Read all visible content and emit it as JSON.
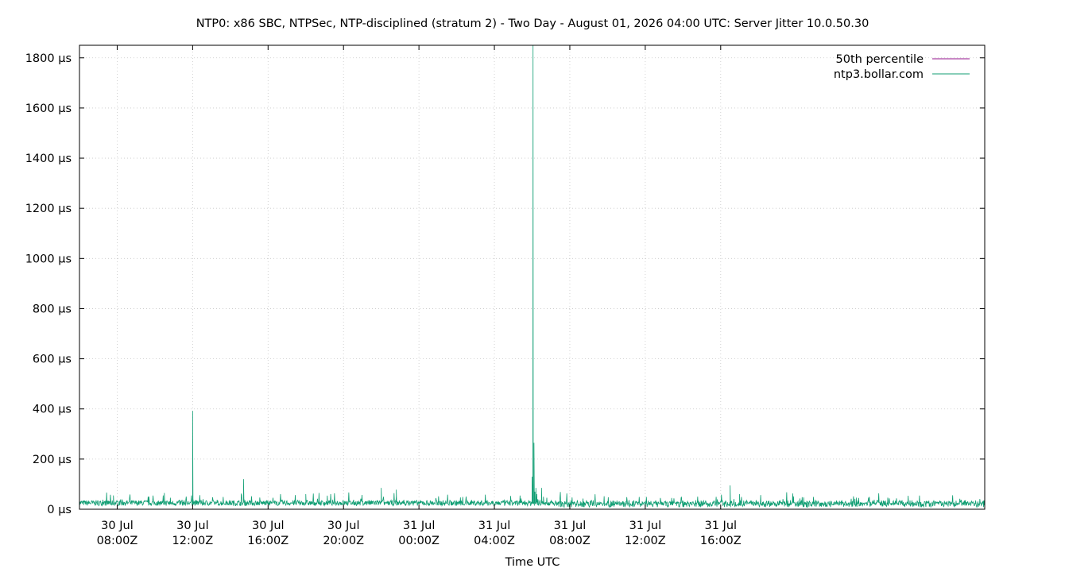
{
  "chart_data": {
    "type": "line",
    "title": "NTP0: x86 SBC, NTPSec, NTP-disciplined (stratum 2) - Two Day - August 01, 2026 04:00 UTC: Server Jitter 10.0.50.30",
    "xlabel": "Time UTC",
    "ylabel": "",
    "x_unit": "hours since 30 Jul 06:00Z",
    "xlim": [
      0,
      48
    ],
    "ylim": [
      0,
      1850
    ],
    "grid": true,
    "legend_position": "top-right",
    "y_ticks": [
      {
        "value": 0,
        "label": "0 µs"
      },
      {
        "value": 200,
        "label": "200 µs"
      },
      {
        "value": 400,
        "label": "400 µs"
      },
      {
        "value": 600,
        "label": "600 µs"
      },
      {
        "value": 800,
        "label": "800 µs"
      },
      {
        "value": 1000,
        "label": "1000 µs"
      },
      {
        "value": 1200,
        "label": "1200 µs"
      },
      {
        "value": 1400,
        "label": "1400 µs"
      },
      {
        "value": 1600,
        "label": "1600 µs"
      },
      {
        "value": 1800,
        "label": "1800 µs"
      }
    ],
    "x_ticks": [
      {
        "value": 2,
        "line1": "30 Jul",
        "line2": "08:00Z"
      },
      {
        "value": 6,
        "line1": "30 Jul",
        "line2": "12:00Z"
      },
      {
        "value": 10,
        "line1": "30 Jul",
        "line2": "16:00Z"
      },
      {
        "value": 14,
        "line1": "30 Jul",
        "line2": "20:00Z"
      },
      {
        "value": 18,
        "line1": "31 Jul",
        "line2": "00:00Z"
      },
      {
        "value": 22,
        "line1": "31 Jul",
        "line2": "04:00Z"
      },
      {
        "value": 26,
        "line1": "31 Jul",
        "line2": "08:00Z"
      },
      {
        "value": 30,
        "line1": "31 Jul",
        "line2": "12:00Z"
      },
      {
        "value": 34,
        "line1": "31 Jul",
        "line2": "16:00Z"
      }
    ],
    "series": [
      {
        "name": "50th percentile",
        "color": "#94168e",
        "x": [],
        "y": []
      },
      {
        "name": "ntp3.bollar.com",
        "color": "#109e73",
        "baseline_us": 25,
        "noise_us": 22,
        "x": [
          1.8,
          4.5,
          6.0,
          6.02,
          8.7,
          8.72,
          12.0,
          16.0,
          16.8,
          24.0,
          24.05,
          24.1,
          24.15,
          24.2,
          24.25,
          24.3,
          24.5,
          24.6,
          34.5,
          35.0
        ],
        "y": [
          55,
          65,
          392,
          40,
          120,
          40,
          60,
          85,
          78,
          130,
          1860,
          265,
          70,
          85,
          60,
          40,
          85,
          50,
          95,
          60
        ]
      }
    ]
  }
}
